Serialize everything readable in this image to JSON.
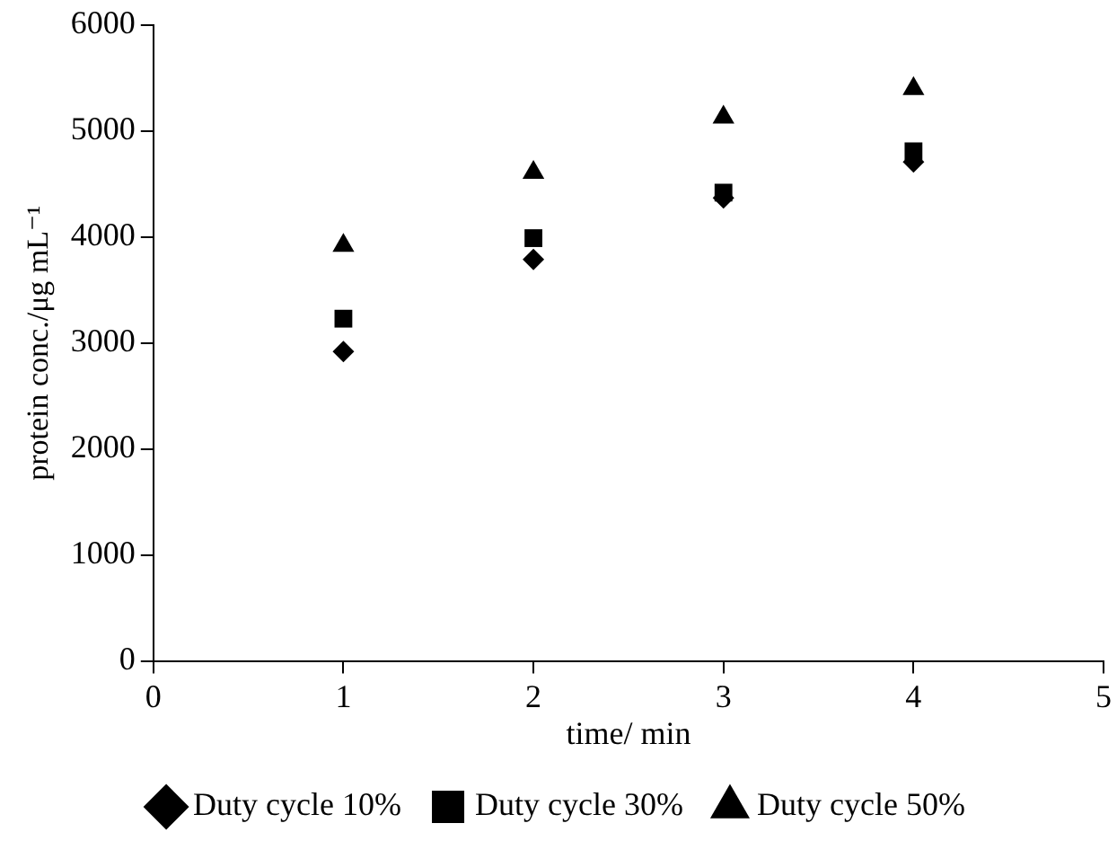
{
  "chart_data": {
    "type": "scatter",
    "xlabel": "time/ min",
    "ylabel": "protein conc./μg mL⁻¹",
    "x": [
      1,
      2,
      3,
      4
    ],
    "series": [
      {
        "name": "Duty cycle 10%",
        "color": "#000000",
        "marker": "diamond",
        "values": [
          2920,
          3790,
          4370,
          4710
        ]
      },
      {
        "name": "Duty cycle 30%",
        "color": "#000000",
        "marker": "square",
        "values": [
          3230,
          3990,
          4420,
          4810
        ]
      },
      {
        "name": "Duty cycle 50%",
        "color": "#000000",
        "marker": "triangle",
        "values": [
          3920,
          4610,
          5130,
          5400
        ]
      }
    ],
    "xlim": [
      0,
      5
    ],
    "xticks": [
      0,
      1,
      2,
      3,
      4,
      5
    ],
    "ylim": [
      0,
      6000
    ],
    "yticks": [
      0,
      1000,
      2000,
      3000,
      4000,
      5000,
      6000
    ],
    "legend": "bottom"
  }
}
